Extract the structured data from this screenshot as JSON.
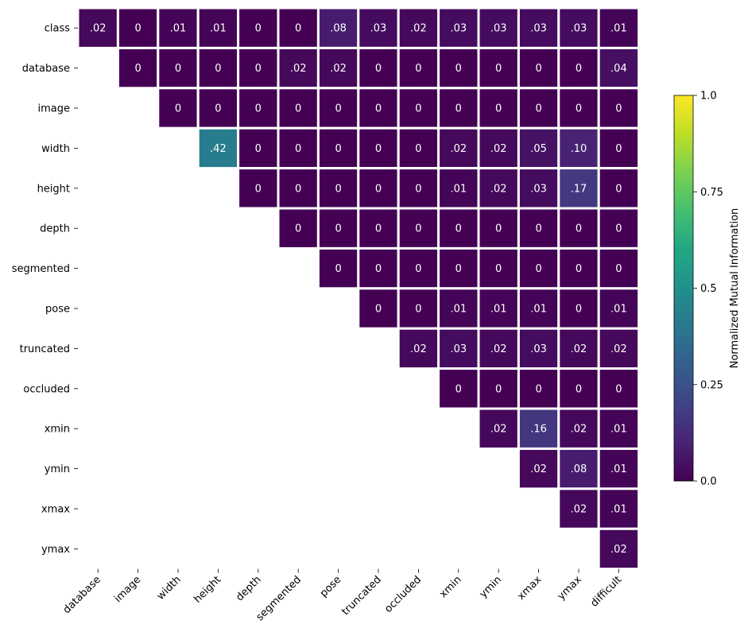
{
  "chart_data": {
    "type": "heatmap",
    "title": "",
    "row_labels": [
      "class",
      "database",
      "image",
      "width",
      "height",
      "depth",
      "segmented",
      "pose",
      "truncated",
      "occluded",
      "xmin",
      "ymin",
      "xmax",
      "ymax"
    ],
    "col_labels": [
      "database",
      "image",
      "width",
      "height",
      "depth",
      "segmented",
      "pose",
      "truncated",
      "occluded",
      "xmin",
      "ymin",
      "xmax",
      "ymax",
      "difficult"
    ],
    "values": [
      [
        0.02,
        0,
        0.01,
        0.01,
        0,
        0,
        0.08,
        0.03,
        0.02,
        0.03,
        0.03,
        0.03,
        0.03,
        0.01
      ],
      [
        null,
        0,
        0,
        0,
        0,
        0.02,
        0.02,
        0,
        0,
        0,
        0,
        0,
        0,
        0.04
      ],
      [
        null,
        null,
        0,
        0,
        0,
        0,
        0,
        0,
        0,
        0,
        0,
        0,
        0,
        0
      ],
      [
        null,
        null,
        null,
        0.42,
        0,
        0,
        0,
        0,
        0,
        0.02,
        0.02,
        0.05,
        0.1,
        0
      ],
      [
        null,
        null,
        null,
        null,
        0,
        0,
        0,
        0,
        0,
        0.01,
        0.02,
        0.03,
        0.17,
        0
      ],
      [
        null,
        null,
        null,
        null,
        null,
        0,
        0,
        0,
        0,
        0,
        0,
        0,
        0,
        0
      ],
      [
        null,
        null,
        null,
        null,
        null,
        null,
        0,
        0,
        0,
        0,
        0,
        0,
        0,
        0
      ],
      [
        null,
        null,
        null,
        null,
        null,
        null,
        null,
        0,
        0,
        0.01,
        0.01,
        0.01,
        0,
        0.01
      ],
      [
        null,
        null,
        null,
        null,
        null,
        null,
        null,
        null,
        0.02,
        0.03,
        0.02,
        0.03,
        0.02,
        0.02
      ],
      [
        null,
        null,
        null,
        null,
        null,
        null,
        null,
        null,
        null,
        0,
        0,
        0,
        0,
        0
      ],
      [
        null,
        null,
        null,
        null,
        null,
        null,
        null,
        null,
        null,
        null,
        0.02,
        0.16,
        0.02,
        0.01
      ],
      [
        null,
        null,
        null,
        null,
        null,
        null,
        null,
        null,
        null,
        null,
        null,
        0.02,
        0.08,
        0.01
      ],
      [
        null,
        null,
        null,
        null,
        null,
        null,
        null,
        null,
        null,
        null,
        null,
        null,
        0.02,
        0.01
      ],
      [
        null,
        null,
        null,
        null,
        null,
        null,
        null,
        null,
        null,
        null,
        null,
        null,
        null,
        0.02
      ]
    ],
    "cell_labels": [
      [
        ".02",
        "0",
        ".01",
        ".01",
        "0",
        "0",
        ".08",
        ".03",
        ".02",
        ".03",
        ".03",
        ".03",
        ".03",
        ".01"
      ],
      [
        null,
        "0",
        "0",
        "0",
        "0",
        ".02",
        ".02",
        "0",
        "0",
        "0",
        "0",
        "0",
        "0",
        ".04"
      ],
      [
        null,
        null,
        "0",
        "0",
        "0",
        "0",
        "0",
        "0",
        "0",
        "0",
        "0",
        "0",
        "0",
        "0"
      ],
      [
        null,
        null,
        null,
        ".42",
        "0",
        "0",
        "0",
        "0",
        "0",
        ".02",
        ".02",
        ".05",
        ".10",
        "0"
      ],
      [
        null,
        null,
        null,
        null,
        "0",
        "0",
        "0",
        "0",
        "0",
        ".01",
        ".02",
        ".03",
        ".17",
        "0"
      ],
      [
        null,
        null,
        null,
        null,
        null,
        "0",
        "0",
        "0",
        "0",
        "0",
        "0",
        "0",
        "0",
        "0"
      ],
      [
        null,
        null,
        null,
        null,
        null,
        null,
        "0",
        "0",
        "0",
        "0",
        "0",
        "0",
        "0",
        "0"
      ],
      [
        null,
        null,
        null,
        null,
        null,
        null,
        null,
        "0",
        "0",
        ".01",
        ".01",
        ".01",
        "0",
        ".01"
      ],
      [
        null,
        null,
        null,
        null,
        null,
        null,
        null,
        null,
        ".02",
        ".03",
        ".02",
        ".03",
        ".02",
        ".02"
      ],
      [
        null,
        null,
        null,
        null,
        null,
        null,
        null,
        null,
        null,
        "0",
        "0",
        "0",
        "0",
        "0"
      ],
      [
        null,
        null,
        null,
        null,
        null,
        null,
        null,
        null,
        null,
        null,
        ".02",
        ".16",
        ".02",
        ".01"
      ],
      [
        null,
        null,
        null,
        null,
        null,
        null,
        null,
        null,
        null,
        null,
        null,
        ".02",
        ".08",
        ".01"
      ],
      [
        null,
        null,
        null,
        null,
        null,
        null,
        null,
        null,
        null,
        null,
        null,
        null,
        ".02",
        ".01"
      ],
      [
        null,
        null,
        null,
        null,
        null,
        null,
        null,
        null,
        null,
        null,
        null,
        null,
        null,
        ".02"
      ]
    ],
    "colorscale": "viridis",
    "vmin": 0,
    "vmax": 1,
    "colorbar": {
      "label": "Normalized Mutual Information",
      "ticks": [
        0.0,
        0.25,
        0.5,
        0.75,
        1.0
      ],
      "tick_labels": [
        "0.0",
        "0.25",
        "0.5",
        "0.75",
        "1.0"
      ]
    },
    "grid": false,
    "legend": "none"
  }
}
